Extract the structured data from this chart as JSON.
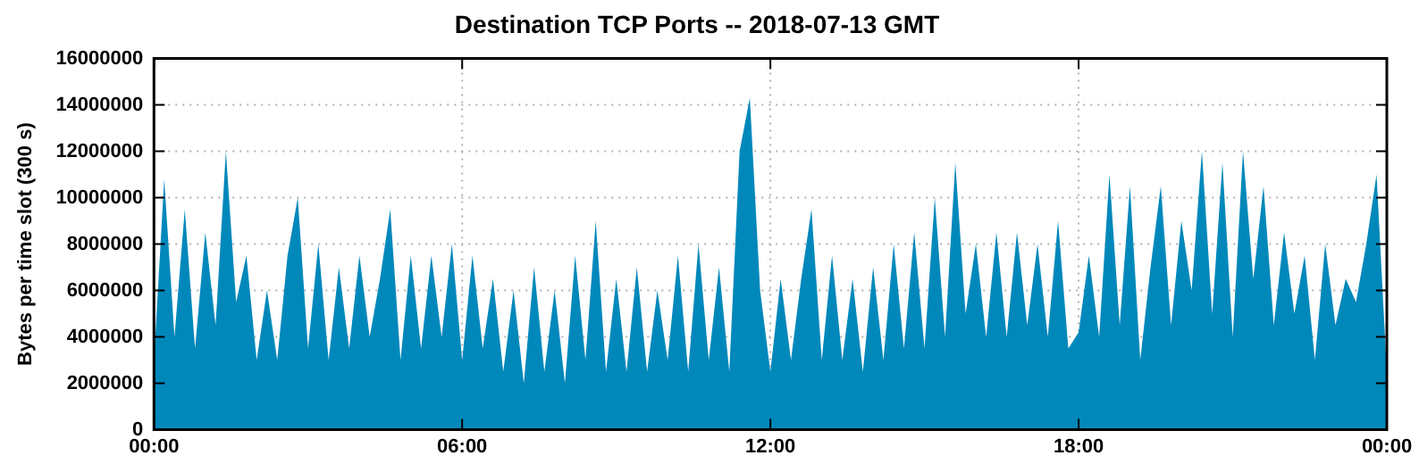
{
  "chart_data": {
    "type": "area",
    "title": "Destination TCP Ports -- 2018-07-13 GMT",
    "ylabel": "Bytes per time slot (300 s)",
    "x": [
      0,
      0.2,
      0.4,
      0.6,
      0.8,
      1,
      1.2,
      1.4,
      1.6,
      1.8,
      2,
      2.2,
      2.4,
      2.6,
      2.8,
      3,
      3.2,
      3.4,
      3.6,
      3.8,
      4,
      4.2,
      4.4,
      4.6,
      4.8,
      5,
      5.2,
      5.4,
      5.6,
      5.8,
      6,
      6.2,
      6.4,
      6.6,
      6.8,
      7,
      7.2,
      7.4,
      7.6,
      7.8,
      8,
      8.2,
      8.4,
      8.6,
      8.8,
      9,
      9.2,
      9.4,
      9.6,
      9.8,
      10,
      10.2,
      10.4,
      10.6,
      10.8,
      11,
      11.2,
      11.4,
      11.6,
      11.8,
      12,
      12.2,
      12.4,
      12.6,
      12.8,
      13,
      13.2,
      13.4,
      13.6,
      13.8,
      14,
      14.2,
      14.4,
      14.6,
      14.8,
      15,
      15.2,
      15.4,
      15.6,
      15.8,
      16,
      16.2,
      16.4,
      16.6,
      16.8,
      17,
      17.2,
      17.4,
      17.6,
      17.8,
      18,
      18.2,
      18.4,
      18.6,
      18.8,
      19,
      19.2,
      19.4,
      19.6,
      19.8,
      20,
      20.2,
      20.4,
      20.6,
      20.8,
      21,
      21.2,
      21.4,
      21.6,
      21.8,
      22,
      22.2,
      22.4,
      22.6,
      22.8,
      23,
      23.2,
      23.4,
      23.6,
      23.8,
      24
    ],
    "series": [
      {
        "color": "#0088bb",
        "values": [
          3000000,
          10800000,
          4000000,
          9500000,
          3500000,
          8500000,
          4500000,
          12000000,
          5500000,
          7500000,
          3000000,
          6000000,
          3000000,
          7500000,
          10000000,
          3500000,
          8000000,
          3000000,
          7000000,
          3500000,
          7500000,
          4000000,
          6500000,
          9500000,
          3000000,
          7500000,
          3500000,
          7500000,
          4000000,
          8000000,
          3000000,
          7500000,
          3500000,
          6500000,
          2500000,
          6000000,
          2000000,
          7000000,
          2500000,
          6000000,
          2000000,
          7500000,
          3000000,
          9000000,
          2500000,
          6500000,
          2500000,
          7000000,
          2500000,
          6000000,
          3000000,
          7500000,
          2500000,
          8000000,
          3000000,
          7000000,
          2500000,
          12000000,
          14300000,
          6000000,
          2500000,
          6500000,
          3000000,
          6500000,
          9500000,
          3000000,
          7500000,
          3000000,
          6500000,
          2500000,
          7000000,
          3000000,
          8000000,
          3500000,
          8500000,
          3500000,
          10000000,
          4000000,
          11500000,
          5000000,
          8000000,
          4000000,
          8500000,
          4000000,
          8500000,
          4500000,
          8000000,
          4000000,
          9000000,
          3500000,
          4200000,
          7500000,
          4000000,
          11000000,
          4500000,
          10500000,
          3000000,
          7000000,
          10500000,
          4500000,
          9000000,
          6000000,
          12000000,
          5000000,
          11500000,
          4000000,
          12000000,
          6500000,
          10500000,
          4500000,
          8500000,
          5000000,
          7500000,
          3000000,
          8000000,
          4500000,
          6500000,
          5500000,
          8000000,
          11000000,
          2500000
        ]
      }
    ],
    "xlim": [
      0,
      24
    ],
    "xticks": [
      {
        "value": 0,
        "label": "00:00"
      },
      {
        "value": 6,
        "label": "06:00"
      },
      {
        "value": 12,
        "label": "12:00"
      },
      {
        "value": 18,
        "label": "18:00"
      },
      {
        "value": 24,
        "label": "00:00"
      }
    ],
    "ylim": [
      0,
      16000000
    ],
    "yticks": [
      0,
      2000000,
      4000000,
      6000000,
      8000000,
      10000000,
      12000000,
      14000000,
      16000000
    ],
    "grid": true,
    "legend": false
  }
}
